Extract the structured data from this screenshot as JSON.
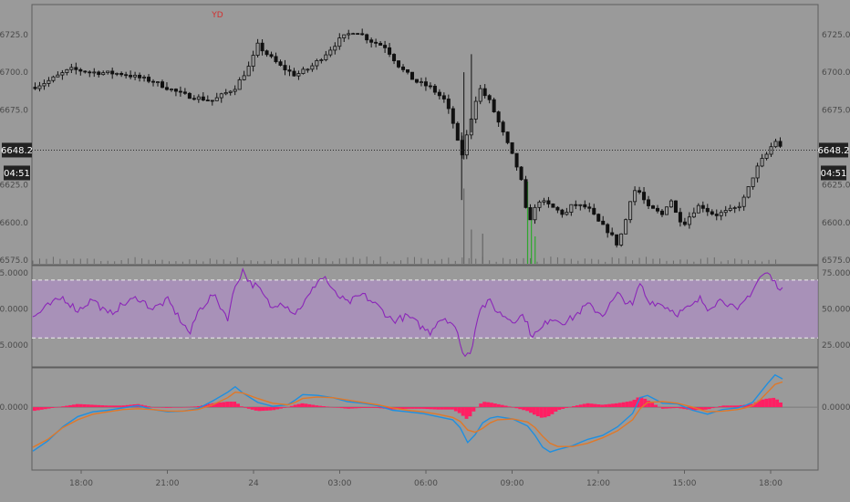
{
  "chart_data": [
    {
      "type": "candlestick",
      "panel": "price",
      "y_ticks": [
        "6725.0",
        "6700.0",
        "6675.0",
        "6625.0",
        "6600.0",
        "6575.0"
      ],
      "ylim": [
        6572,
        6745
      ],
      "current_price": "6648.2",
      "countdown": "04:51",
      "annotation": "YD",
      "x_ticks": [
        "18:00",
        "21:00",
        "24",
        "03:00",
        "06:00",
        "09:00",
        "12:00",
        "15:00",
        "18:00"
      ],
      "price_path": [
        [
          0,
          6690
        ],
        [
          2,
          6694
        ],
        [
          5,
          6702
        ],
        [
          8,
          6700
        ],
        [
          12,
          6699
        ],
        [
          16,
          6694
        ],
        [
          20,
          6685
        ],
        [
          24,
          6681
        ],
        [
          27,
          6690
        ],
        [
          29,
          6705
        ],
        [
          30,
          6718
        ],
        [
          31,
          6713
        ],
        [
          33,
          6704
        ],
        [
          35,
          6698
        ],
        [
          37,
          6703
        ],
        [
          39,
          6712
        ],
        [
          41,
          6722
        ],
        [
          43,
          6728
        ],
        [
          45,
          6721
        ],
        [
          47,
          6717
        ],
        [
          49,
          6703
        ],
        [
          51,
          6694
        ],
        [
          53,
          6690
        ],
        [
          55,
          6681
        ],
        [
          56.5,
          6660
        ],
        [
          57,
          6640
        ],
        [
          57.5,
          6650
        ],
        [
          58.5,
          6670
        ],
        [
          59.5,
          6690
        ],
        [
          61,
          6680
        ],
        [
          62,
          6668
        ],
        [
          63.5,
          6650
        ],
        [
          64.5,
          6638
        ],
        [
          65.3,
          6625
        ],
        [
          66,
          6600
        ],
        [
          66.6,
          6605
        ],
        [
          67.5,
          6615
        ],
        [
          69,
          6611
        ],
        [
          71,
          6605
        ],
        [
          72,
          6612
        ],
        [
          74,
          6610
        ],
        [
          75.5,
          6600
        ],
        [
          77,
          6593
        ],
        [
          78,
          6585
        ],
        [
          79,
          6600
        ],
        [
          80,
          6622
        ],
        [
          81,
          6620
        ],
        [
          82,
          6610
        ],
        [
          83,
          6608
        ],
        [
          84,
          6605
        ],
        [
          85,
          6617
        ],
        [
          86,
          6603
        ],
        [
          87,
          6600
        ],
        [
          88,
          6607
        ],
        [
          89,
          6612
        ],
        [
          90,
          6608
        ],
        [
          91,
          6605
        ],
        [
          93,
          6608
        ],
        [
          94,
          6610
        ],
        [
          95,
          6617
        ],
        [
          96,
          6630
        ],
        [
          97,
          6640
        ],
        [
          98,
          6646
        ],
        [
          99,
          6655
        ],
        [
          100,
          6648
        ]
      ],
      "volume_spikes": [
        {
          "x": 57.5,
          "v": 55,
          "color": "#666666"
        },
        {
          "x": 58.5,
          "v": 25,
          "color": "#666666"
        },
        {
          "x": 60.0,
          "v": 22,
          "color": "#666666"
        },
        {
          "x": 66.0,
          "v": 60,
          "color": "#2fa82f"
        },
        {
          "x": 66.5,
          "v": 35,
          "color": "#2fa82f"
        },
        {
          "x": 67.0,
          "v": 20,
          "color": "#2fa82f"
        }
      ]
    },
    {
      "type": "line",
      "panel": "oscillator",
      "y_ticks": [
        "75.0000",
        "50.0000",
        "25.0000"
      ],
      "ylim": [
        10,
        80
      ],
      "band": [
        30,
        70
      ],
      "series_color": "#8b26b8",
      "band_color": "#b48ad2",
      "values": [
        [
          0,
          44
        ],
        [
          2,
          52
        ],
        [
          4,
          58
        ],
        [
          6,
          49
        ],
        [
          8,
          57
        ],
        [
          10,
          46
        ],
        [
          12,
          53
        ],
        [
          14,
          58
        ],
        [
          16,
          50
        ],
        [
          18,
          56
        ],
        [
          20,
          40
        ],
        [
          21,
          33
        ],
        [
          22,
          48
        ],
        [
          24,
          60
        ],
        [
          26,
          44
        ],
        [
          27,
          66
        ],
        [
          28,
          77
        ],
        [
          29,
          68
        ],
        [
          30,
          65
        ],
        [
          32,
          50
        ],
        [
          33,
          56
        ],
        [
          35,
          47
        ],
        [
          37,
          60
        ],
        [
          38,
          70
        ],
        [
          39,
          72
        ],
        [
          40,
          62
        ],
        [
          42,
          54
        ],
        [
          44,
          60
        ],
        [
          46,
          52
        ],
        [
          48,
          42
        ],
        [
          50,
          45
        ],
        [
          52,
          37
        ],
        [
          53,
          34
        ],
        [
          54,
          42
        ],
        [
          55,
          44
        ],
        [
          56,
          40
        ],
        [
          57,
          28
        ],
        [
          57.5,
          16
        ],
        [
          58.5,
          22
        ],
        [
          59.5,
          50
        ],
        [
          61,
          55
        ],
        [
          62,
          48
        ],
        [
          64,
          42
        ],
        [
          65.5,
          46
        ],
        [
          66.5,
          32
        ],
        [
          67.5,
          34
        ],
        [
          69,
          44
        ],
        [
          71,
          41
        ],
        [
          72,
          44
        ],
        [
          74,
          53
        ],
        [
          76,
          46
        ],
        [
          78,
          60
        ],
        [
          80,
          52
        ],
        [
          81,
          68
        ],
        [
          82,
          56
        ],
        [
          84,
          53
        ],
        [
          86,
          47
        ],
        [
          88,
          52
        ],
        [
          89,
          57
        ],
        [
          90,
          51
        ],
        [
          92,
          57
        ],
        [
          94,
          48
        ],
        [
          95,
          56
        ],
        [
          96,
          63
        ],
        [
          97,
          72
        ],
        [
          98,
          75
        ],
        [
          99,
          68
        ],
        [
          100,
          64
        ]
      ]
    },
    {
      "type": "histogram",
      "panel": "macd",
      "y_ticks": [
        "0.0000"
      ],
      "ylim": [
        -8,
        5
      ],
      "line_a_color": "#1f8fe0",
      "line_b_color": "#e07828",
      "bar_color": "#ff1f63",
      "line_a": [
        [
          0,
          -5.6
        ],
        [
          2,
          -4.3
        ],
        [
          4,
          -2.5
        ],
        [
          6,
          -1.2
        ],
        [
          8,
          -0.6
        ],
        [
          10,
          -0.4
        ],
        [
          12,
          -0.1
        ],
        [
          14,
          0.2
        ],
        [
          16,
          -0.3
        ],
        [
          18,
          -0.6
        ],
        [
          20,
          -0.5
        ],
        [
          22,
          -0.2
        ],
        [
          24,
          0.8
        ],
        [
          26,
          1.9
        ],
        [
          27,
          2.6
        ],
        [
          28,
          1.8
        ],
        [
          30,
          0.6
        ],
        [
          32,
          0.1
        ],
        [
          34,
          0.3
        ],
        [
          35,
          0.9
        ],
        [
          36,
          1.6
        ],
        [
          38,
          1.5
        ],
        [
          40,
          1.2
        ],
        [
          42,
          0.7
        ],
        [
          44,
          0.5
        ],
        [
          46,
          0.2
        ],
        [
          48,
          -0.4
        ],
        [
          50,
          -0.6
        ],
        [
          52,
          -0.8
        ],
        [
          54,
          -1.2
        ],
        [
          56,
          -1.6
        ],
        [
          57,
          -2.6
        ],
        [
          58,
          -4.5
        ],
        [
          59,
          -3.5
        ],
        [
          60,
          -2.0
        ],
        [
          61,
          -1.4
        ],
        [
          62,
          -1.2
        ],
        [
          64,
          -1.5
        ],
        [
          66,
          -2.4
        ],
        [
          67,
          -3.6
        ],
        [
          68,
          -5.1
        ],
        [
          69,
          -5.7
        ],
        [
          70,
          -5.4
        ],
        [
          72,
          -4.9
        ],
        [
          74,
          -4.1
        ],
        [
          76,
          -3.6
        ],
        [
          78,
          -2.5
        ],
        [
          80,
          -0.8
        ],
        [
          81,
          1.2
        ],
        [
          82,
          1.5
        ],
        [
          84,
          0.5
        ],
        [
          86,
          0.4
        ],
        [
          88,
          -0.4
        ],
        [
          90,
          -0.9
        ],
        [
          92,
          -0.3
        ],
        [
          94,
          -0.1
        ],
        [
          95,
          0.2
        ],
        [
          96,
          0.6
        ],
        [
          97,
          1.8
        ],
        [
          98,
          3.0
        ],
        [
          99,
          4.1
        ],
        [
          100,
          3.6
        ]
      ],
      "line_b": [
        [
          0,
          -5.1
        ],
        [
          2,
          -4.1
        ],
        [
          4,
          -2.6
        ],
        [
          6,
          -1.6
        ],
        [
          8,
          -0.9
        ],
        [
          10,
          -0.6
        ],
        [
          12,
          -0.3
        ],
        [
          14,
          -0.2
        ],
        [
          16,
          -0.3
        ],
        [
          18,
          -0.5
        ],
        [
          20,
          -0.5
        ],
        [
          22,
          -0.3
        ],
        [
          24,
          0.3
        ],
        [
          26,
          1.2
        ],
        [
          27,
          1.9
        ],
        [
          28,
          1.8
        ],
        [
          30,
          1.1
        ],
        [
          32,
          0.5
        ],
        [
          34,
          0.3
        ],
        [
          35,
          0.6
        ],
        [
          36,
          1.1
        ],
        [
          38,
          1.3
        ],
        [
          40,
          1.2
        ],
        [
          42,
          0.9
        ],
        [
          44,
          0.6
        ],
        [
          46,
          0.3
        ],
        [
          48,
          -0.1
        ],
        [
          50,
          -0.4
        ],
        [
          52,
          -0.6
        ],
        [
          54,
          -0.9
        ],
        [
          56,
          -1.3
        ],
        [
          57,
          -1.8
        ],
        [
          58,
          -2.9
        ],
        [
          59,
          -3.2
        ],
        [
          60,
          -2.7
        ],
        [
          61,
          -2.0
        ],
        [
          62,
          -1.6
        ],
        [
          64,
          -1.5
        ],
        [
          66,
          -1.9
        ],
        [
          67,
          -2.6
        ],
        [
          68,
          -3.7
        ],
        [
          69,
          -4.6
        ],
        [
          70,
          -5.0
        ],
        [
          72,
          -5.0
        ],
        [
          74,
          -4.6
        ],
        [
          76,
          -3.9
        ],
        [
          78,
          -3.0
        ],
        [
          80,
          -1.6
        ],
        [
          81,
          -0.2
        ],
        [
          82,
          0.6
        ],
        [
          84,
          0.7
        ],
        [
          86,
          0.5
        ],
        [
          88,
          0.0
        ],
        [
          90,
          -0.6
        ],
        [
          92,
          -0.5
        ],
        [
          94,
          -0.3
        ],
        [
          95,
          -0.1
        ],
        [
          96,
          0.2
        ],
        [
          97,
          0.9
        ],
        [
          98,
          1.9
        ],
        [
          99,
          2.9
        ],
        [
          100,
          3.2
        ]
      ]
    }
  ]
}
